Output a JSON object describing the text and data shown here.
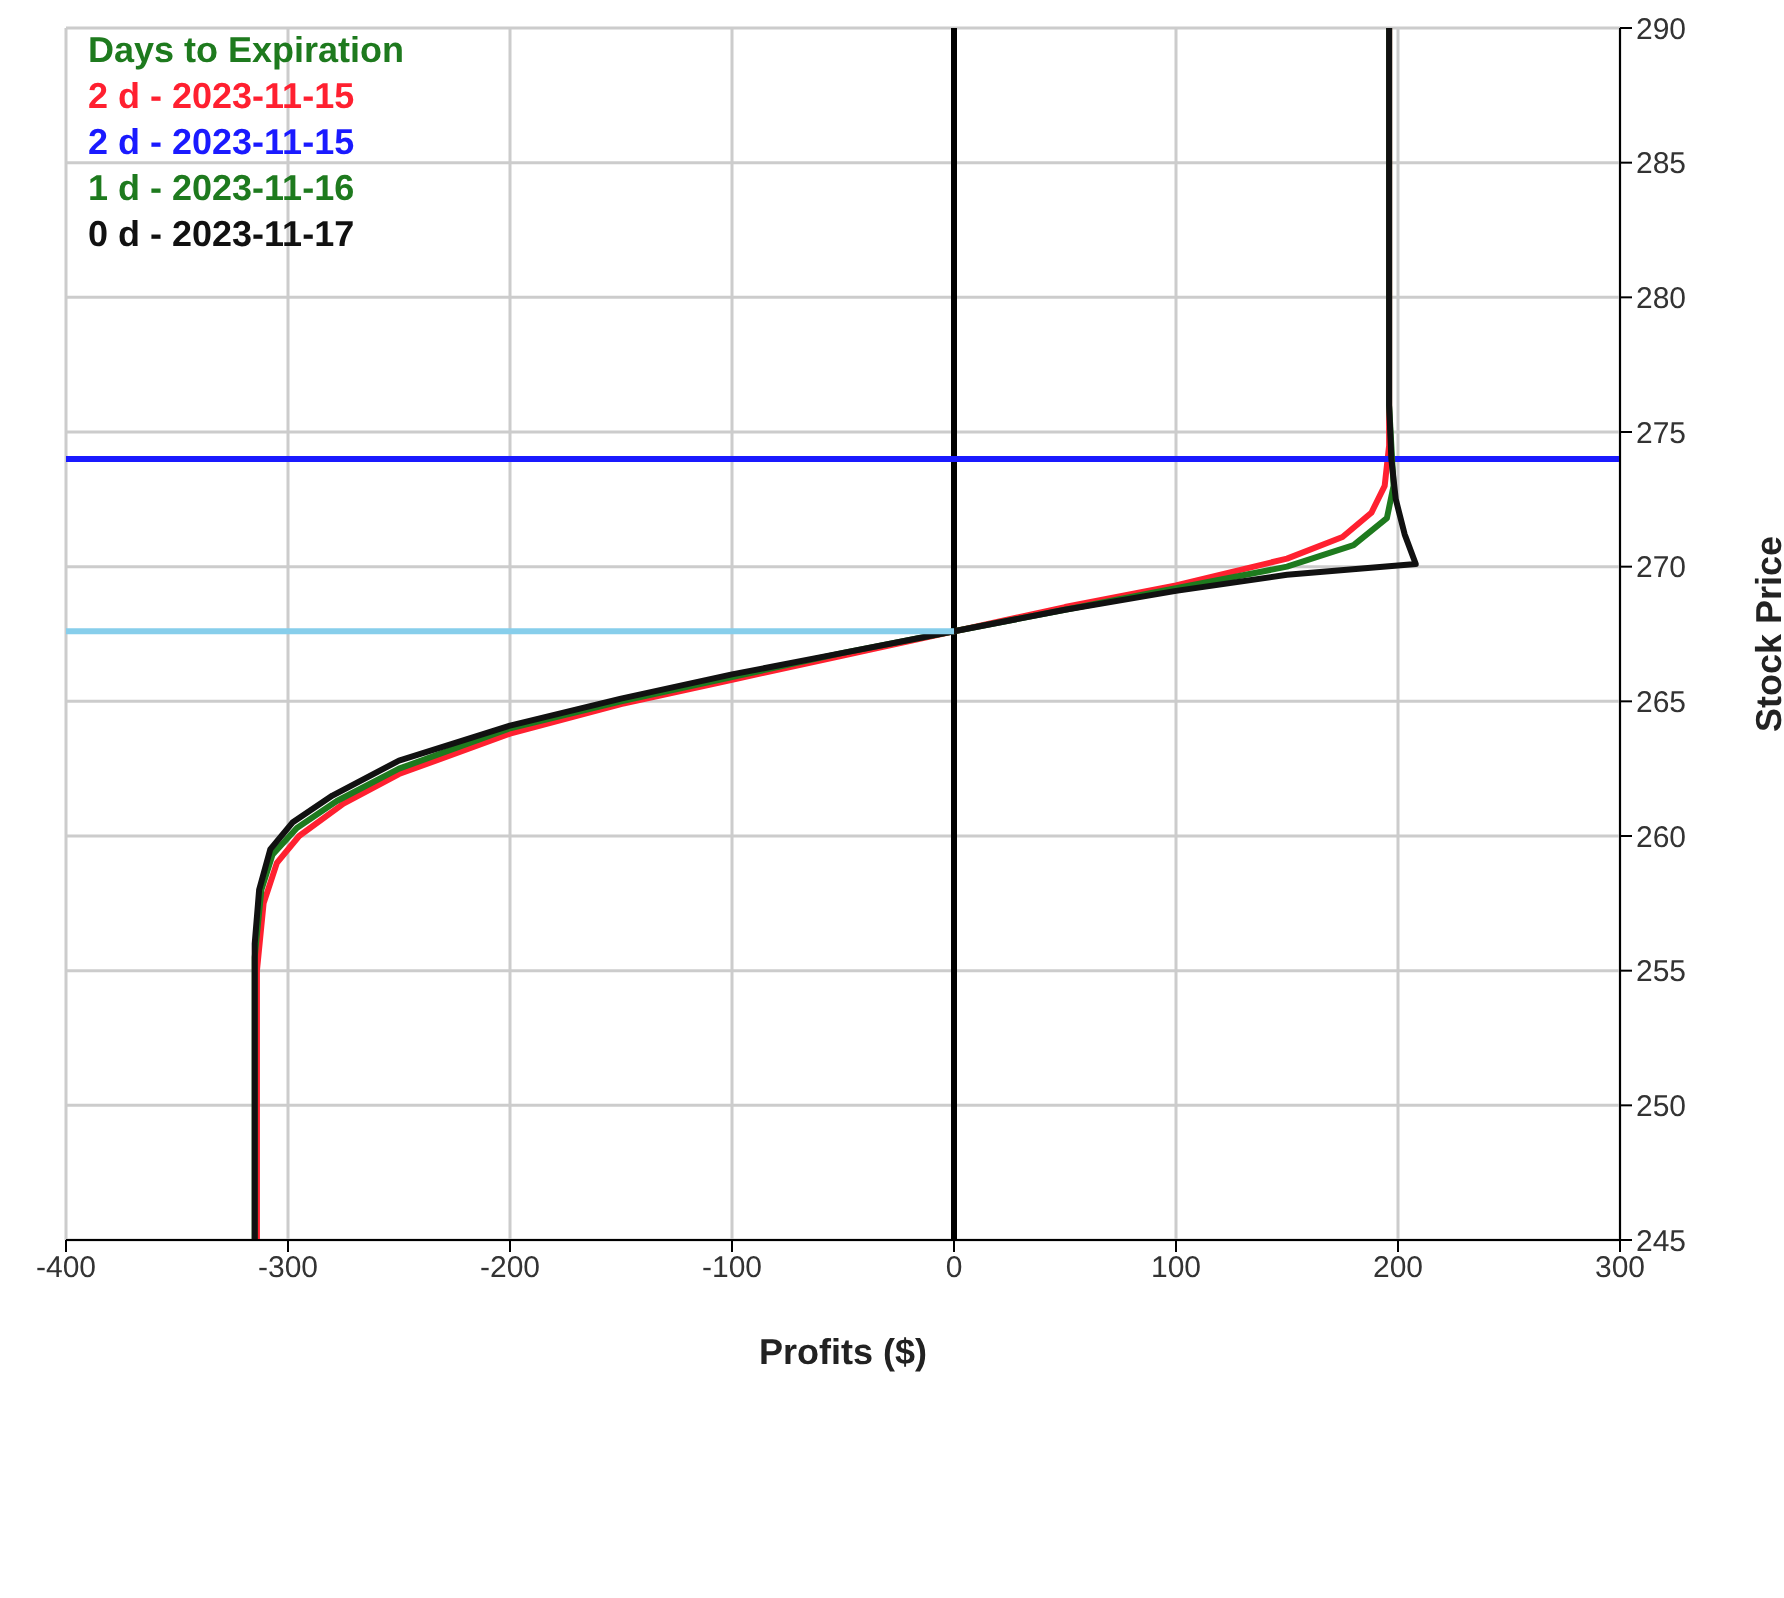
{
  "chart_data": {
    "type": "line",
    "xlabel": "Profits ($)",
    "ylabel": "Stock Price",
    "legend_title": "Days to Expiration",
    "legend": "top left",
    "grid": true,
    "marker": "none",
    "line_style": "solid",
    "xlim": [
      -400,
      300
    ],
    "xticks": [
      -400,
      -300,
      -200,
      -100,
      0,
      100,
      200,
      300
    ],
    "ylim": [
      245,
      290
    ],
    "yticks": [
      245,
      250,
      255,
      260,
      265,
      270,
      275,
      280,
      285,
      290
    ],
    "ref_lines": [
      {
        "axis": "x",
        "value": 0,
        "color": "#000000"
      }
    ],
    "series": [
      {
        "name": "2 d - 2023-11-15",
        "color": "#ff2030",
        "x": [
          -314,
          -314,
          -311,
          -305,
          -295,
          -275,
          -250,
          -200,
          -150,
          -100,
          -50,
          0,
          50,
          100,
          150,
          175,
          188,
          194,
          196,
          196
        ],
        "values": [
          245,
          255,
          257.5,
          259,
          260,
          261.2,
          262.3,
          263.8,
          264.9,
          265.8,
          266.7,
          267.6,
          268.5,
          269.3,
          270.3,
          271.1,
          272,
          273,
          274.5,
          290
        ]
      },
      {
        "name": "2 d - 2023-11-15",
        "color": "#1a1aff",
        "x": [
          -400,
          300
        ],
        "values": [
          274,
          274
        ]
      },
      {
        "name": "1 d - 2023-11-16",
        "color": "#1e7a1e",
        "x": [
          -315,
          -315,
          -312,
          -307,
          -296,
          -278,
          -250,
          -200,
          -150,
          -100,
          -50,
          0,
          50,
          100,
          150,
          180,
          195,
          198,
          197,
          196,
          196
        ],
        "values": [
          245,
          255.5,
          258,
          259.3,
          260.3,
          261.3,
          262.5,
          264,
          265,
          265.9,
          266.8,
          267.6,
          268.4,
          269.2,
          270,
          270.8,
          271.8,
          273,
          274.5,
          276,
          290
        ]
      },
      {
        "name": "0 d - 2023-11-17",
        "color": "#111111",
        "x": [
          -315,
          -315,
          -313,
          -308,
          -298,
          -280,
          -250,
          -200,
          -150,
          -100,
          -50,
          0,
          50,
          100,
          150,
          208,
          203,
          199,
          197,
          196,
          196
        ],
        "values": [
          245,
          256,
          258,
          259.5,
          260.5,
          261.5,
          262.8,
          264.1,
          265.1,
          266,
          266.8,
          267.6,
          268.4,
          269.1,
          269.7,
          270.1,
          271.2,
          272.5,
          274,
          276,
          290
        ]
      },
      {
        "color": "#87ceeb",
        "x": [
          -400,
          0
        ],
        "values": [
          267.6,
          267.6
        ]
      }
    ]
  }
}
